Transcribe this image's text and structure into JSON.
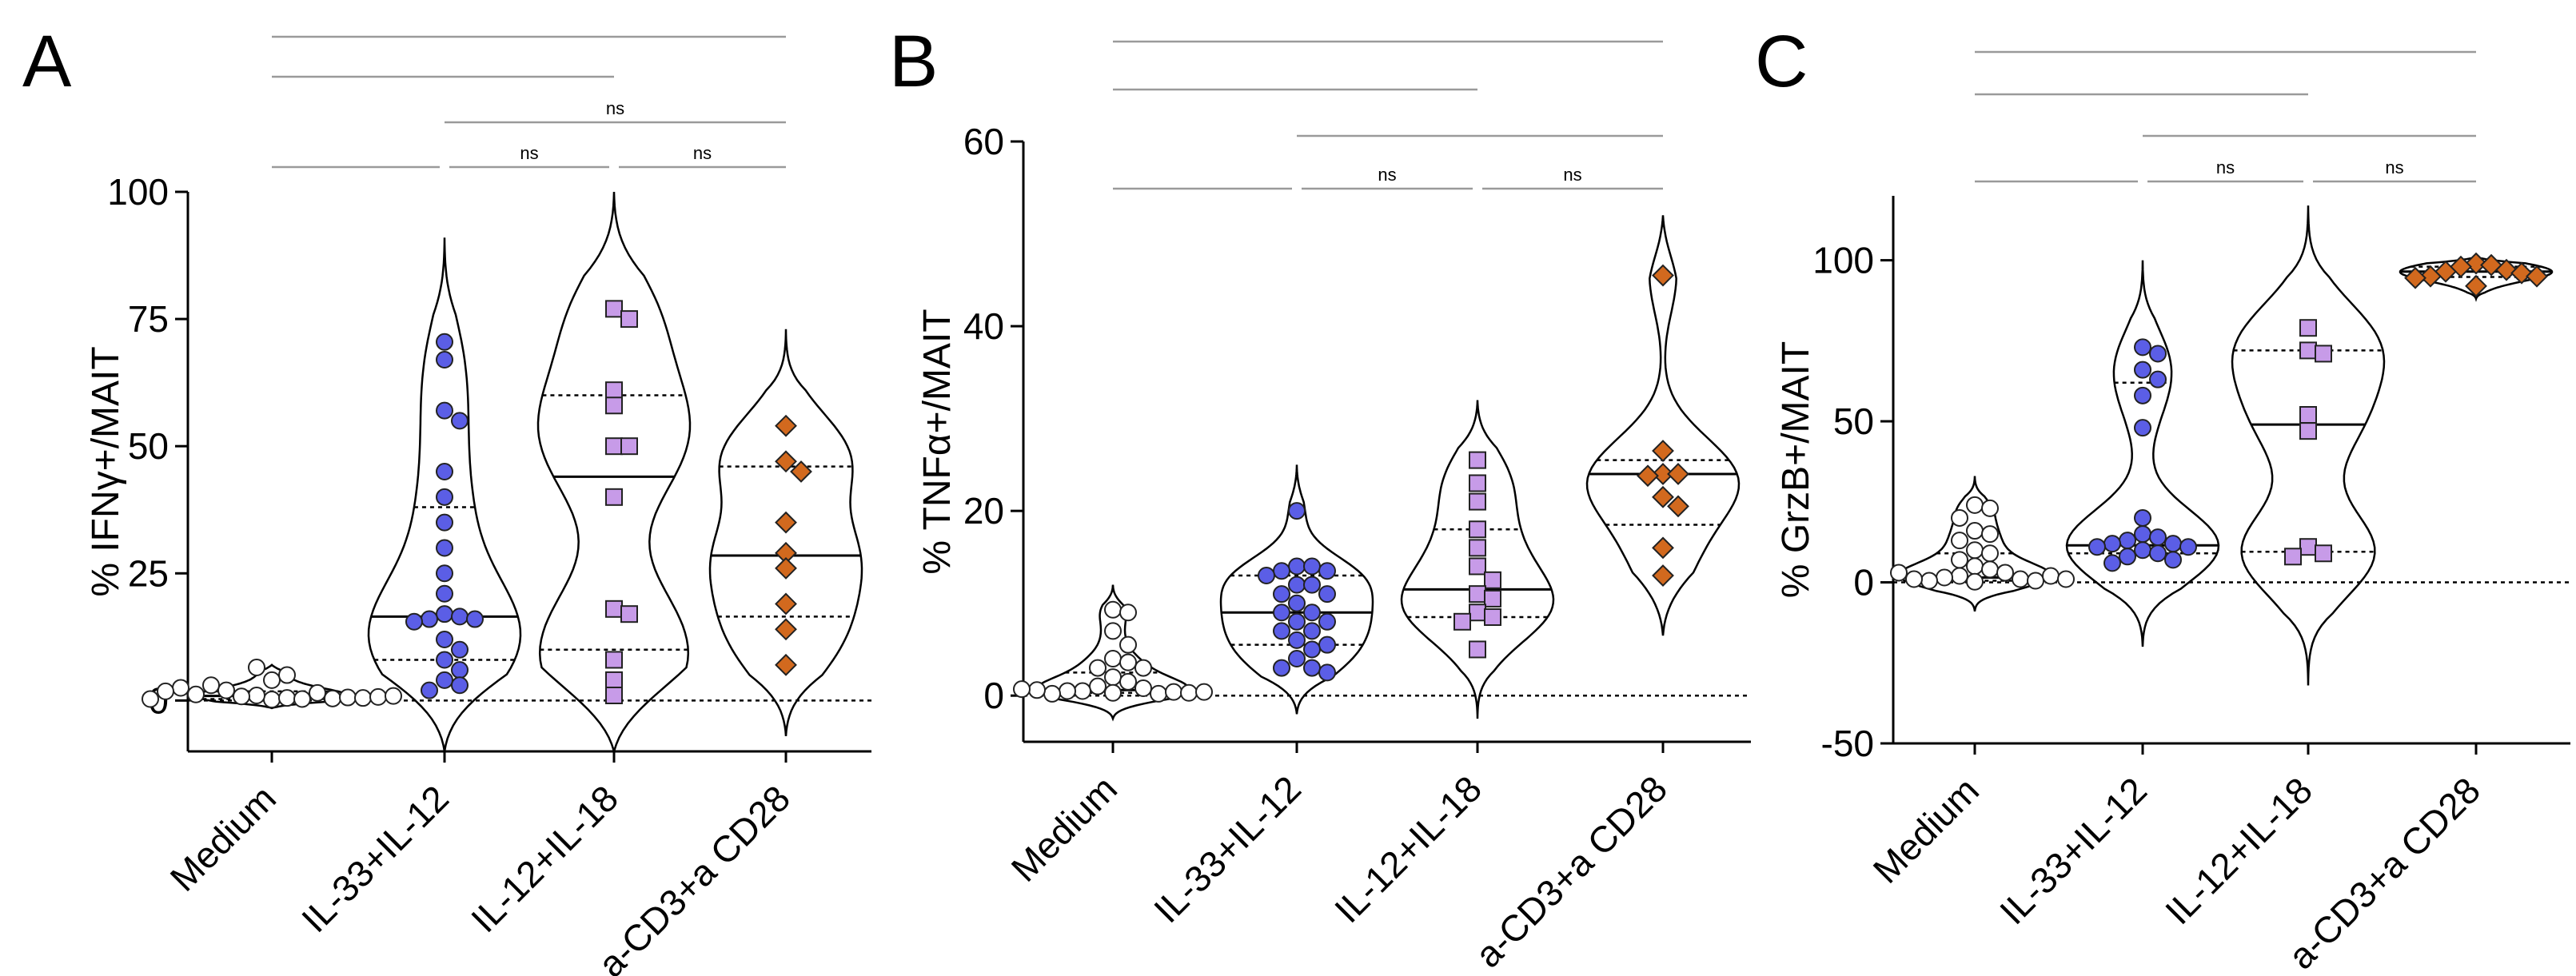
{
  "figure": {
    "panels": [
      "A",
      "B",
      "C"
    ],
    "group_colors": {
      "Medium": "#ffffff",
      "IL-33+IL-12": "#5b5ee6",
      "IL-12+IL-18": "#c79be8",
      "a-CD3+a CD28": "#d2691e"
    },
    "group_markers": [
      "circle",
      "circle",
      "square",
      "diamond"
    ]
  },
  "chart_data": [
    {
      "type": "scatter",
      "subtype": "violin",
      "panel_label": "A",
      "ylabel": "% IFNγ+/MAIT",
      "categories": [
        "Medium",
        "IL-33+IL-12",
        "IL-12+IL-18",
        "a-CD3+a CD28"
      ],
      "ylim": [
        -10,
        100
      ],
      "yticks": [
        0,
        25,
        50,
        75,
        100
      ],
      "reference_line": 0,
      "series": [
        {
          "name": "Medium",
          "values": [
            0.2,
            0.5,
            1,
            0.3,
            0.8,
            1.5,
            2,
            0.4,
            3,
            0.6,
            1.2,
            0.5,
            4,
            5,
            6.5,
            2.5,
            0.7,
            1.8,
            0.9,
            0.3
          ],
          "median": 0.9,
          "q1": 0.3,
          "q3": 1.8,
          "violin_extent": [
            -1.5,
            7
          ]
        },
        {
          "name": "IL-33+IL-12",
          "values": [
            70.5,
            67,
            57,
            55,
            45,
            40,
            35,
            30,
            25,
            21,
            17,
            16.5,
            16,
            16,
            15.5,
            12,
            10,
            8,
            6,
            4,
            3,
            2
          ],
          "median": 16.5,
          "q1": 8,
          "q3": 38,
          "violin_extent": [
            -10,
            91
          ]
        },
        {
          "name": "IL-12+IL-18",
          "values": [
            77,
            75,
            61,
            58,
            50,
            50,
            40,
            18,
            17,
            8,
            4,
            1
          ],
          "median": 44,
          "q1": 10,
          "q3": 60,
          "violin_extent": [
            -10,
            100
          ]
        },
        {
          "name": "a-CD3+a CD28",
          "values": [
            54,
            47,
            45,
            35,
            29,
            26,
            19,
            14,
            7
          ],
          "median": 28.5,
          "q1": 16.5,
          "q3": 46,
          "violin_extent": [
            -7,
            73
          ]
        }
      ],
      "significance": [
        {
          "from": "Medium",
          "to": "a-CD3+a CD28",
          "label": ""
        },
        {
          "from": "Medium",
          "to": "IL-12+IL-18",
          "label": ""
        },
        {
          "from": "IL-33+IL-12",
          "to": "a-CD3+a CD28",
          "label": "ns"
        },
        {
          "from": "Medium",
          "to": "IL-33+IL-12",
          "label": ""
        },
        {
          "from": "IL-33+IL-12",
          "to": "IL-12+IL-18",
          "label": "ns"
        },
        {
          "from": "IL-12+IL-18",
          "to": "a-CD3+a CD28",
          "label": "ns"
        }
      ]
    },
    {
      "type": "scatter",
      "subtype": "violin",
      "panel_label": "B",
      "ylabel": "% TNFα+/MAIT",
      "categories": [
        "Medium",
        "IL-33+IL-12",
        "IL-12+IL-18",
        "a-CD3+a CD28"
      ],
      "ylim": [
        -5,
        60
      ],
      "yticks": [
        0,
        20,
        40,
        60
      ],
      "reference_line": 0,
      "series": [
        {
          "name": "Medium",
          "values": [
            9.3,
            9,
            7,
            5.5,
            4,
            3.6,
            3,
            3,
            2,
            1.5,
            1,
            0.8,
            0.5,
            0.3,
            0.2,
            0.5,
            0.4,
            0.2,
            0.3,
            0.6,
            0.4,
            0.7
          ],
          "median": 0.6,
          "q1": 0.3,
          "q3": 2.5,
          "violin_extent": [
            -2.5,
            12
          ]
        },
        {
          "name": "IL-33+IL-12",
          "values": [
            20,
            14,
            14,
            13.5,
            13.5,
            13,
            12,
            12,
            11,
            11,
            10,
            9,
            9,
            8,
            8,
            7,
            7,
            6,
            5.5,
            5,
            4,
            3,
            3,
            2.5
          ],
          "median": 9,
          "q1": 5.5,
          "q3": 13,
          "violin_extent": [
            -2,
            25
          ]
        },
        {
          "name": "IL-12+IL-18",
          "values": [
            25.5,
            23,
            21,
            18,
            16,
            14,
            12.5,
            11,
            10.5,
            9,
            8.5,
            8,
            5
          ],
          "median": 11.5,
          "q1": 8.5,
          "q3": 18,
          "violin_extent": [
            -2.5,
            32
          ]
        },
        {
          "name": "a-CD3+a CD28",
          "values": [
            45.5,
            26.5,
            24,
            24,
            23.8,
            21.5,
            20.5,
            16,
            13
          ],
          "median": 24,
          "q1": 18.5,
          "q3": 25.5,
          "violin_extent": [
            6.5,
            52
          ]
        }
      ],
      "significance": [
        {
          "from": "Medium",
          "to": "a-CD3+a CD28",
          "label": ""
        },
        {
          "from": "Medium",
          "to": "IL-12+IL-18",
          "label": ""
        },
        {
          "from": "IL-33+IL-12",
          "to": "a-CD3+a CD28",
          "label": ""
        },
        {
          "from": "Medium",
          "to": "IL-33+IL-12",
          "label": ""
        },
        {
          "from": "IL-33+IL-12",
          "to": "IL-12+IL-18",
          "label": "ns"
        },
        {
          "from": "IL-12+IL-18",
          "to": "a-CD3+a CD28",
          "label": "ns"
        }
      ]
    },
    {
      "type": "scatter",
      "subtype": "violin",
      "panel_label": "C",
      "ylabel": "% GrzB+/MAIT",
      "categories": [
        "Medium",
        "IL-33+IL-12",
        "IL-12+IL-18",
        "a-CD3+a CD28"
      ],
      "ylim": [
        -50,
        120
      ],
      "yticks": [
        -50,
        0,
        50,
        100
      ],
      "reference_line": 0,
      "series": [
        {
          "name": "Medium",
          "values": [
            24,
            23,
            20,
            16,
            15,
            13,
            10,
            9,
            7,
            5,
            4,
            3,
            2,
            1.5,
            1,
            0.5,
            0.5,
            1,
            2,
            3,
            0.2,
            1
          ],
          "median": 1.5,
          "q1": 0.5,
          "q3": 9,
          "violin_extent": [
            -9,
            33
          ]
        },
        {
          "name": "IL-33+IL-12",
          "values": [
            73,
            71,
            66,
            63,
            58,
            48,
            20,
            15,
            14,
            13,
            12,
            12,
            11,
            11,
            10,
            9,
            8,
            7,
            6
          ],
          "median": 11.5,
          "q1": 9,
          "q3": 62,
          "violin_extent": [
            -20,
            100
          ]
        },
        {
          "name": "IL-12+IL-18",
          "values": [
            79,
            72,
            71,
            52,
            47,
            11,
            9,
            8
          ],
          "median": 49,
          "q1": 9.5,
          "q3": 72,
          "violin_extent": [
            -32,
            117
          ]
        },
        {
          "name": "a-CD3+a CD28",
          "values": [
            99,
            98.5,
            98,
            97,
            96.5,
            96,
            95,
            95,
            94.5,
            92
          ],
          "median": 96.5,
          "q1": 94.8,
          "q3": 98,
          "violin_extent": [
            88,
            101
          ]
        }
      ],
      "significance": [
        {
          "from": "Medium",
          "to": "a-CD3+a CD28",
          "label": ""
        },
        {
          "from": "Medium",
          "to": "IL-12+IL-18",
          "label": ""
        },
        {
          "from": "IL-33+IL-12",
          "to": "a-CD3+a CD28",
          "label": ""
        },
        {
          "from": "Medium",
          "to": "IL-33+IL-12",
          "label": ""
        },
        {
          "from": "IL-33+IL-12",
          "to": "IL-12+IL-18",
          "label": "ns"
        },
        {
          "from": "IL-12+IL-18",
          "to": "a-CD3+a CD28",
          "label": "ns"
        }
      ]
    }
  ]
}
